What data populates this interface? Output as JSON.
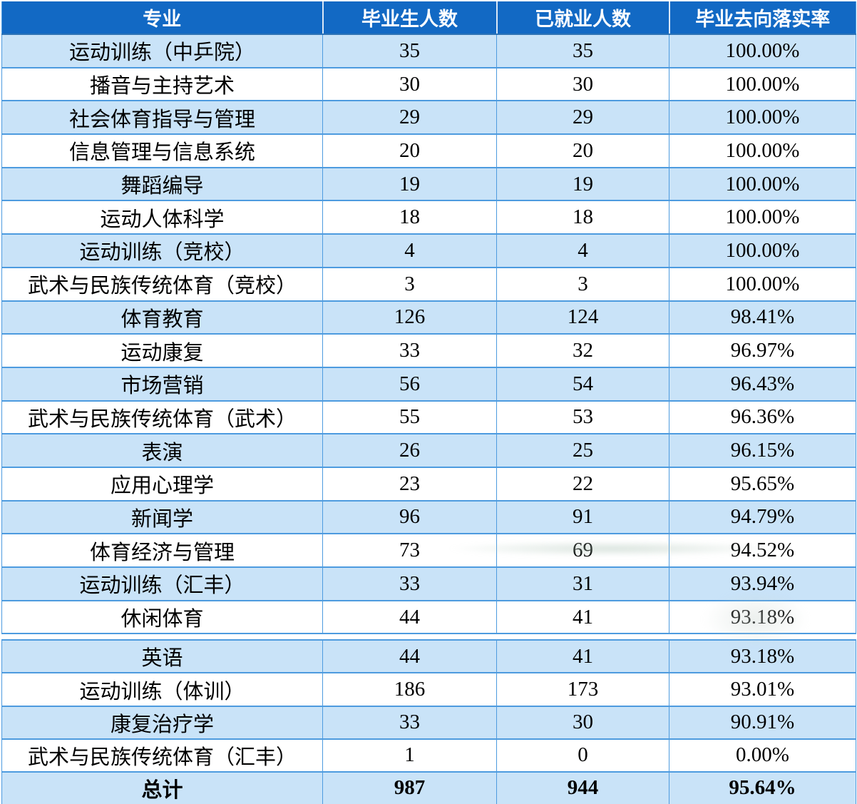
{
  "colors": {
    "header_bg": "#1269c4",
    "header_text": "#ffffff",
    "row_alt_bg": "#c9e3f8",
    "row_bg": "#ffffff",
    "grid_line": "#4d9bdf",
    "section_border": "#2e74b6",
    "body_text": "#000000"
  },
  "table": {
    "columns": [
      "专业",
      "毕业生人数",
      "已就业人数",
      "毕业去向落实率"
    ],
    "rows_top": [
      [
        "运动训练（中乒院）",
        "35",
        "35",
        "100.00%"
      ],
      [
        "播音与主持艺术",
        "30",
        "30",
        "100.00%"
      ],
      [
        "社会体育指导与管理",
        "29",
        "29",
        "100.00%"
      ],
      [
        "信息管理与信息系统",
        "20",
        "20",
        "100.00%"
      ],
      [
        "舞蹈编导",
        "19",
        "19",
        "100.00%"
      ],
      [
        "运动人体科学",
        "18",
        "18",
        "100.00%"
      ],
      [
        "运动训练（竞校）",
        "4",
        "4",
        "100.00%"
      ],
      [
        "武术与民族传统体育（竞校）",
        "3",
        "3",
        "100.00%"
      ],
      [
        "体育教育",
        "126",
        "124",
        "98.41%"
      ],
      [
        "运动康复",
        "33",
        "32",
        "96.97%"
      ],
      [
        "市场营销",
        "56",
        "54",
        "96.43%"
      ],
      [
        "武术与民族传统体育（武术）",
        "55",
        "53",
        "96.36%"
      ],
      [
        "表演",
        "26",
        "25",
        "96.15%"
      ],
      [
        "应用心理学",
        "23",
        "22",
        "95.65%"
      ],
      [
        "新闻学",
        "96",
        "91",
        "94.79%"
      ],
      [
        "体育经济与管理",
        "73",
        "69",
        "94.52%"
      ],
      [
        "运动训练（汇丰）",
        "33",
        "31",
        "93.94%"
      ],
      [
        "休闲体育",
        "44",
        "41",
        "93.18%"
      ]
    ],
    "rows_bottom": [
      [
        "英语",
        "44",
        "41",
        "93.18%"
      ],
      [
        "运动训练（体训）",
        "186",
        "173",
        "93.01%"
      ],
      [
        "康复治疗学",
        "33",
        "30",
        "90.91%"
      ],
      [
        "武术与民族传统体育（汇丰）",
        "1",
        "0",
        "0.00%"
      ]
    ],
    "total_row": [
      "总计",
      "987",
      "944",
      "95.64%"
    ]
  }
}
